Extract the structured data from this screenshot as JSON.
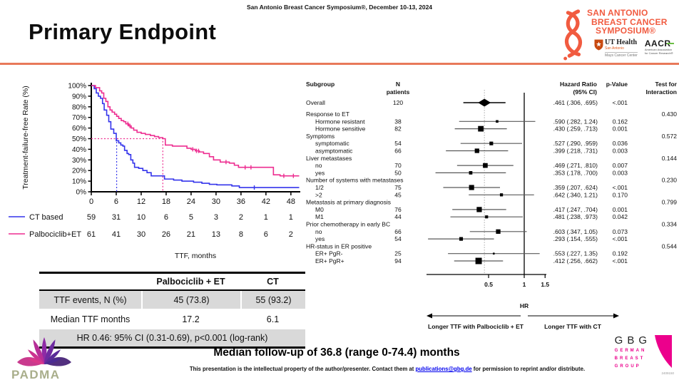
{
  "slide": {
    "symposium_header": "San Antonio Breast Cancer Symposium®, December 10-13, 2024",
    "title": "Primary Endpoint",
    "accent_color": "#E8795A",
    "median_followup": "Median follow-up of 36.8 (range 0-74.4) months",
    "footer": {
      "pre_link": "This presentation is the intellectual property of the author/presenter. Contact them at ",
      "link": "publications@gbg.de",
      "post_link": " for permission to reprint and/or distribute.",
      "doc_number": "2409150"
    }
  },
  "logos": {
    "sabcs": {
      "lines": [
        "SAN ANTONIO",
        "BREAST CANCER",
        "SYMPOSIUM®"
      ],
      "color": "#F15B40",
      "ut_health": {
        "name": "UT Health",
        "sub": "San Antonio",
        "division": "Mays Cancer Center"
      },
      "aacr": {
        "name": "AACR",
        "green": "#6CBE45",
        "sub1": "American Association",
        "sub2": "for Cancer Research®"
      }
    },
    "padma": {
      "name": "PADMA",
      "text_color": "#A9AE8B"
    },
    "gbg": {
      "name": "GBG",
      "sub_lines": [
        "GERMAN",
        "BREAST",
        "GROUP"
      ],
      "pink": "#EC008C"
    }
  },
  "results_table": {
    "headers": [
      "",
      "Palbociclib + ET",
      "CT"
    ],
    "rows": [
      [
        "TTF events, N (%)",
        "45 (73.8)",
        "55 (93.2)"
      ],
      [
        "Median TTF months",
        "17.2",
        "6.1"
      ]
    ],
    "footer": "HR 0.46: 95% CI (0.31-0.69), p<0.001 (log-rank)"
  },
  "chart_data": [
    {
      "type": "line",
      "subtype": "kaplan-meier",
      "title": "",
      "xlabel": "TTF, months",
      "ylabel": "Treatment-failure-free Rate (%)",
      "xlim": [
        0,
        50
      ],
      "ylim": [
        0,
        100
      ],
      "xticks": [
        0,
        6,
        12,
        18,
        24,
        30,
        36,
        42,
        48
      ],
      "ytick_values": [
        0,
        10,
        20,
        30,
        40,
        50,
        60,
        70,
        80,
        90,
        100
      ],
      "median_reference_pct": 50,
      "series": [
        {
          "name": "CT based",
          "color": "#3434EB",
          "median_months": 6.1,
          "risk_counts": [
            59,
            31,
            10,
            6,
            5,
            3,
            2,
            1,
            1
          ],
          "steps": [
            [
              0,
              100
            ],
            [
              0.7,
              97
            ],
            [
              1.2,
              93
            ],
            [
              1.7,
              90
            ],
            [
              2.2,
              88
            ],
            [
              2.7,
              83
            ],
            [
              3.1,
              77
            ],
            [
              3.7,
              72
            ],
            [
              4.2,
              66
            ],
            [
              4.7,
              59
            ],
            [
              5.4,
              55
            ],
            [
              6,
              48
            ],
            [
              6.6,
              46
            ],
            [
              7.1,
              44
            ],
            [
              7.6,
              43
            ],
            [
              8,
              39
            ],
            [
              8.6,
              36
            ],
            [
              9,
              35
            ],
            [
              9.5,
              30
            ],
            [
              10,
              27
            ],
            [
              10.4,
              23
            ],
            [
              11.4,
              22
            ],
            [
              12.4,
              20
            ],
            [
              13.4,
              18
            ],
            [
              14.4,
              15
            ],
            [
              17.6,
              12
            ],
            [
              19.8,
              11
            ],
            [
              21.8,
              10
            ],
            [
              24.6,
              9
            ],
            [
              26.6,
              8
            ],
            [
              28.4,
              7
            ],
            [
              30.2,
              6.5
            ],
            [
              33.8,
              5.5
            ],
            [
              35.6,
              4
            ],
            [
              50,
              4
            ]
          ],
          "censors": [
            [
              39.2,
              4
            ]
          ]
        },
        {
          "name": "Palbociclib+ET",
          "color": "#ED2D90",
          "median_months": 17.2,
          "risk_counts": [
            61,
            41,
            30,
            26,
            21,
            13,
            8,
            6,
            2
          ],
          "steps": [
            [
              0,
              100
            ],
            [
              1,
              98
            ],
            [
              2,
              95
            ],
            [
              2.5,
              93
            ],
            [
              3,
              88
            ],
            [
              3.5,
              85
            ],
            [
              4,
              80
            ],
            [
              4.5,
              77
            ],
            [
              5,
              75
            ],
            [
              5.6,
              73
            ],
            [
              6.1,
              71
            ],
            [
              6.6,
              69
            ],
            [
              7.2,
              67
            ],
            [
              7.8,
              66
            ],
            [
              8.3,
              64
            ],
            [
              9,
              62
            ],
            [
              9.6,
              60
            ],
            [
              10.2,
              58
            ],
            [
              11,
              56
            ],
            [
              12,
              55
            ],
            [
              13,
              54
            ],
            [
              14.2,
              53
            ],
            [
              15.2,
              52
            ],
            [
              16.2,
              51
            ],
            [
              17.2,
              50
            ],
            [
              17.8,
              44
            ],
            [
              19.5,
              43
            ],
            [
              23,
              41
            ],
            [
              24,
              40
            ],
            [
              25,
              38.5
            ],
            [
              26,
              37.5
            ],
            [
              27,
              36
            ],
            [
              28.4,
              33
            ],
            [
              29.4,
              30
            ],
            [
              31,
              28
            ],
            [
              33.2,
              27
            ],
            [
              34.4,
              25
            ],
            [
              35.4,
              23
            ],
            [
              43.8,
              16
            ],
            [
              45.4,
              15
            ],
            [
              50,
              15
            ]
          ],
          "censors": [
            [
              8.8,
              64
            ],
            [
              9.3,
              62
            ],
            [
              24.4,
              40
            ],
            [
              25.3,
              38.5
            ],
            [
              25.8,
              38.5
            ],
            [
              32.4,
              28
            ],
            [
              37,
              23
            ],
            [
              38.4,
              23
            ],
            [
              46.3,
              15
            ],
            [
              48.6,
              15
            ]
          ]
        }
      ]
    },
    {
      "type": "forest",
      "columns": {
        "subgroup": "Subgroup",
        "n_line1": "N",
        "n_line2": "patients",
        "hr_line1": "Hazard Ratio",
        "hr_line2": "(95% CI)",
        "p": "p-Value",
        "interaction_line1": "Test for",
        "interaction_line2": "Interaction"
      },
      "axis": {
        "ticks": [
          "0.5",
          "1",
          "1.5"
        ],
        "tick_values": [
          0.5,
          1,
          1.5
        ],
        "ref_line": 1,
        "dotted_line": 0.461,
        "scale": "log"
      },
      "hr_axis_label": "HR",
      "arrow_left_label": "Longer TTF with Palbociclib + ET",
      "arrow_right_label": "Longer TTF with CT",
      "rows": [
        {
          "label": "Overall",
          "indent": 0,
          "n": 120,
          "hr": 0.461,
          "lo": 0.306,
          "hi": 0.695,
          "ci_text": ".461 (.306, .695)",
          "p": "<.001",
          "marker": "diamond"
        },
        {
          "label": "Response to ET",
          "indent": 0,
          "interaction": "0.430"
        },
        {
          "label": "Hormone resistant",
          "indent": 1,
          "n": 38,
          "hr": 0.59,
          "lo": 0.282,
          "hi": 1.24,
          "ci_text": ".590 (.282, 1.24)",
          "p": "0.162"
        },
        {
          "label": "Hormone sensitive",
          "indent": 1,
          "n": 82,
          "hr": 0.43,
          "lo": 0.259,
          "hi": 0.713,
          "ci_text": ".430 (.259, .713)",
          "p": "0.001"
        },
        {
          "label": "Symptoms",
          "indent": 0,
          "interaction": "0.572"
        },
        {
          "label": "symptomatic",
          "indent": 1,
          "n": 54,
          "hr": 0.527,
          "lo": 0.29,
          "hi": 0.959,
          "ci_text": ".527 (.290, .959)",
          "p": "0.036"
        },
        {
          "label": "asymptomatic",
          "indent": 1,
          "n": 66,
          "hr": 0.399,
          "lo": 0.218,
          "hi": 0.731,
          "ci_text": ".399 (.218, .731)",
          "p": "0.003"
        },
        {
          "label": "Liver metastases",
          "indent": 0,
          "interaction": "0.144"
        },
        {
          "label": "no",
          "indent": 1,
          "n": 70,
          "hr": 0.469,
          "lo": 0.271,
          "hi": 0.81,
          "ci_text": ".469 (.271, .810)",
          "p": "0.007"
        },
        {
          "label": "yes",
          "indent": 1,
          "n": 50,
          "hr": 0.353,
          "lo": 0.178,
          "hi": 0.7,
          "ci_text": ".353 (.178, .700)",
          "p": "0.003"
        },
        {
          "label": "Number of systems with metastases",
          "indent": 0,
          "interaction": "0.230"
        },
        {
          "label": "1/2",
          "indent": 1,
          "n": 75,
          "hr": 0.359,
          "lo": 0.207,
          "hi": 0.624,
          "ci_text": ".359 (.207, .624)",
          "p": "<.001"
        },
        {
          "label": ">2",
          "indent": 1,
          "n": 45,
          "hr": 0.642,
          "lo": 0.34,
          "hi": 1.21,
          "ci_text": ".642 (.340, 1.21)",
          "p": "0.170"
        },
        {
          "label": "Metastasis at primary diagnosis",
          "indent": 0,
          "interaction": "0.799"
        },
        {
          "label": "M0",
          "indent": 1,
          "n": 76,
          "hr": 0.417,
          "lo": 0.247,
          "hi": 0.704,
          "ci_text": ".417 (.247, .704)",
          "p": "0.001"
        },
        {
          "label": "M1",
          "indent": 1,
          "n": 44,
          "hr": 0.481,
          "lo": 0.238,
          "hi": 0.973,
          "ci_text": ".481 (.238, .973)",
          "p": "0.042"
        },
        {
          "label": "Prior chemotherapy in early BC",
          "indent": 0,
          "interaction": "0.334"
        },
        {
          "label": "no",
          "indent": 1,
          "n": 66,
          "hr": 0.603,
          "lo": 0.347,
          "hi": 1.05,
          "ci_text": ".603 (.347, 1.05)",
          "p": "0.073"
        },
        {
          "label": "yes",
          "indent": 1,
          "n": 54,
          "hr": 0.293,
          "lo": 0.154,
          "hi": 0.555,
          "ci_text": ".293 (.154, .555)",
          "p": "<.001"
        },
        {
          "label": "HR-status in ER positive",
          "indent": 0,
          "interaction": "0.544"
        },
        {
          "label": "ER+ PgR-",
          "indent": 1,
          "n": 25,
          "hr": 0.553,
          "lo": 0.227,
          "hi": 1.35,
          "ci_text": ".553 (.227, 1.35)",
          "p": "0.192"
        },
        {
          "label": "ER+ PgR+",
          "indent": 1,
          "n": 94,
          "hr": 0.412,
          "lo": 0.256,
          "hi": 0.662,
          "ci_text": ".412 (.256, .662)",
          "p": "<.001"
        }
      ]
    }
  ]
}
